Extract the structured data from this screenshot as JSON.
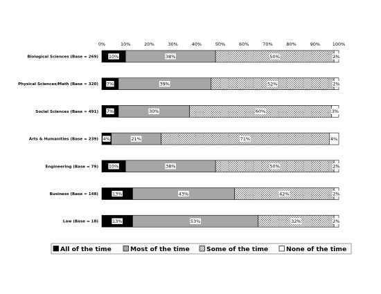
{
  "chart_data": {
    "type": "bar",
    "stacked": true,
    "orientation": "horizontal",
    "percent_scale": true,
    "categories": [
      "Biological Sciences (Base = 269)",
      "Physical Sciences/Math (Base = 320)",
      "Social Sciences (Base = 491)",
      "Arts & Humanities (Base = 239)",
      "Engineering (Base = 79)",
      "Business (Base = 148)",
      "Law (Base = 18)"
    ],
    "series": [
      {
        "name": "All of the time",
        "values": [
          10,
          7,
          7,
          4,
          10,
          13,
          13
        ],
        "labels": [
          "10%",
          "7%",
          "7%",
          "4%",
          "10%",
          "13%",
          "13%"
        ],
        "color": "#000000",
        "pattern": "solid"
      },
      {
        "name": "Most of the time",
        "values": [
          38,
          39,
          30,
          21,
          38,
          43,
          53
        ],
        "labels": [
          "38%",
          "39%",
          "30%",
          "21%",
          "38%",
          "43%",
          "53%"
        ],
        "color": "#a6a6a6",
        "pattern": "solid"
      },
      {
        "name": "Some of the time",
        "values": [
          50,
          52,
          60,
          71,
          50,
          42,
          32
        ],
        "labels": [
          "50%",
          "52%",
          "60%",
          "71%",
          "50%",
          "42%",
          "32%"
        ],
        "color": "#ffffff",
        "pattern": "checker"
      },
      {
        "name": "None of the time",
        "values": [
          2,
          2,
          3,
          4,
          2,
          2,
          2
        ],
        "labels": [
          "2%",
          "2%",
          "3%",
          "4%",
          "2%",
          "2%",
          "2%"
        ],
        "color": "#ffffff",
        "pattern": "solid"
      }
    ],
    "x_ticks": [
      "0%",
      "10%",
      "20%",
      "30%",
      "40%",
      "50%",
      "60%",
      "70%",
      "80%",
      "90%",
      "100%"
    ],
    "xlim": [
      0,
      100
    ],
    "grid": false,
    "legend_position": "bottom",
    "title": "",
    "xlabel": "",
    "ylabel": ""
  }
}
